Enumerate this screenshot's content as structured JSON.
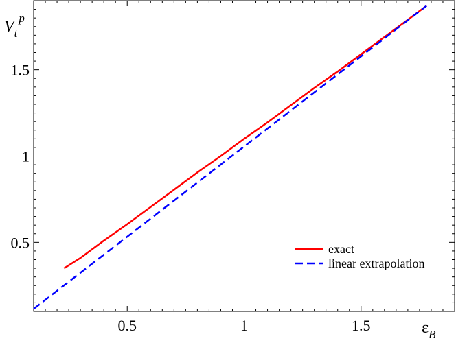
{
  "chart_data": {
    "type": "line",
    "title": "",
    "xlabel": {
      "base": "ε",
      "sub": "B"
    },
    "ylabel": {
      "base": "V",
      "sub": "t",
      "sup": "p"
    },
    "xlim": [
      0.1,
      1.9
    ],
    "ylim": [
      0.1,
      1.9
    ],
    "x_ticks": [
      0.5,
      1,
      1.5
    ],
    "x_tick_labels": [
      "0.5",
      "1",
      "1.5"
    ],
    "y_ticks": [
      0.5,
      1,
      1.5
    ],
    "y_tick_labels": [
      "0.5",
      "1",
      "1.5"
    ],
    "grid": false,
    "legend_position": "bottom-right",
    "series": [
      {
        "name": "exact",
        "color": "#ff0000",
        "dash": "solid",
        "x": [
          0.23,
          0.3,
          0.4,
          0.5,
          0.6,
          0.7,
          0.8,
          0.9,
          1.0,
          1.1,
          1.2,
          1.3,
          1.4,
          1.5,
          1.6,
          1.7,
          1.78
        ],
        "y": [
          0.35,
          0.41,
          0.51,
          0.605,
          0.705,
          0.805,
          0.905,
          1.0,
          1.1,
          1.195,
          1.295,
          1.395,
          1.49,
          1.59,
          1.69,
          1.79,
          1.87
        ]
      },
      {
        "name": "linear extrapolation",
        "color": "#0000ff",
        "dash": "dashed",
        "x": [
          0.1,
          1.78
        ],
        "y": [
          0.115,
          1.87
        ]
      }
    ]
  }
}
